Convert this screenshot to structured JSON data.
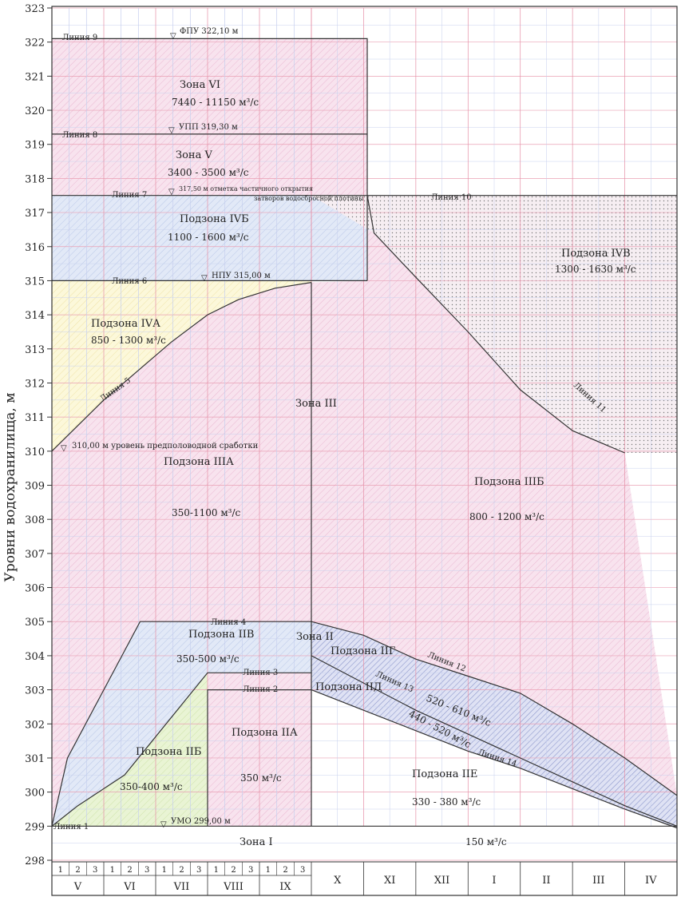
{
  "chart_data": {
    "type": "diagram",
    "title": "",
    "ylabel": "Уровни водохранилища, м",
    "ylim": [
      298,
      323
    ],
    "yticks": [
      "298",
      "299",
      "300",
      "301",
      "302",
      "303",
      "304",
      "305",
      "306",
      "307",
      "308",
      "309",
      "310",
      "311",
      "312",
      "313",
      "314",
      "315",
      "316",
      "317",
      "318",
      "319",
      "320",
      "321",
      "322",
      "323"
    ],
    "months": [
      {
        "name": "V",
        "decades": [
          "1",
          "2",
          "3"
        ]
      },
      {
        "name": "VI",
        "decades": [
          "1",
          "2",
          "3"
        ]
      },
      {
        "name": "VII",
        "decades": [
          "1",
          "2",
          "3"
        ]
      },
      {
        "name": "VIII",
        "decades": [
          "1",
          "2",
          "3"
        ]
      },
      {
        "name": "IX",
        "decades": [
          "1",
          "2",
          "3"
        ]
      },
      {
        "name": "X",
        "decades": []
      },
      {
        "name": "XI",
        "decades": []
      },
      {
        "name": "XII",
        "decades": []
      },
      {
        "name": "I",
        "decades": []
      },
      {
        "name": "II",
        "decades": []
      },
      {
        "name": "III",
        "decades": []
      },
      {
        "name": "IV",
        "decades": []
      }
    ],
    "levels": {
      "fpu": {
        "value": 322.1,
        "label": "ФПУ 322,10 м"
      },
      "upp": {
        "value": 319.3,
        "label": "УПП 319,30 м"
      },
      "partial": {
        "value": 317.5,
        "label1": "317,50 м отметка частичного открытия",
        "label2": "затворов водосбросной плотины"
      },
      "npu": {
        "value": 315.0,
        "label": "НПУ 315,00 м"
      },
      "predflood": {
        "value": 310.0,
        "label": "310,00 м уровень предполоводной сработки"
      },
      "umo": {
        "value": 299.0,
        "label": "УМО 299,00 м"
      }
    },
    "lines": {
      "l1": "Линия 1",
      "l2": "Линия 2",
      "l3": "Линия 3",
      "l4": "Линия 4",
      "l5": "Линия 5",
      "l6": "Линия 6",
      "l7": "Линия 7",
      "l8": "Линия 8",
      "l9": "Линия 9",
      "l10": "Линия 10",
      "l11": "Линия 11",
      "l12": "Линия 12",
      "l13": "Линия 13",
      "l14": "Линия 14"
    },
    "zones": {
      "z6_name": "Зона VI",
      "z6_flow": "7440 - 11150 м³/с",
      "z5_name": "Зона V",
      "z5_flow": "3400 - 3500 м³/с",
      "z4b_name": "Подзона IVБ",
      "z4b_flow": "1100 - 1600 м³/с",
      "z4v_name": "Подзона IVВ",
      "z4v_flow": "1300 - 1630 м³/с",
      "z4a_name": "Подзона IVА",
      "z4a_flow": "850 - 1300 м³/с",
      "z3_name": "Зона III",
      "z3a_name": "Подзона IIIА",
      "z3a_flow": "350-1100 м³/с",
      "z3b_name": "Подзона IIIБ",
      "z3b_flow": "800 - 1200 м³/с",
      "z2_name": "Зона II",
      "z2v_name": "Подзона IIВ",
      "z2v_flow": "350-500 м³/с",
      "z2b_name": "Подзона IIБ",
      "z2b_flow": "350-400 м³/с",
      "z2a_name": "Подзона IIА",
      "z2a_flow": "350 м³/с",
      "z2g_name": "Подзона IIГ",
      "z2g_flow": "520 - 610 м³/с",
      "z2d_name": "Подзона IIД",
      "z2d_flow": "440 - 520 м³/с",
      "z2e_name": "Подзона IIЕ",
      "z2e_flow": "330 - 380 м³/с",
      "z1_name": "Зона I",
      "z1_flow": "150 м³/с"
    },
    "colors": {
      "grid": "#e88aa0",
      "grid_blue": "#b8c6ea",
      "frame": "#333333",
      "pink": "#f6dcea",
      "blue": "#dde6f6",
      "yellow": "#fbf6d4",
      "green": "#e6f2cf",
      "hatch_blue": "#9aa6d8",
      "dots": "#7a7a7a"
    }
  }
}
